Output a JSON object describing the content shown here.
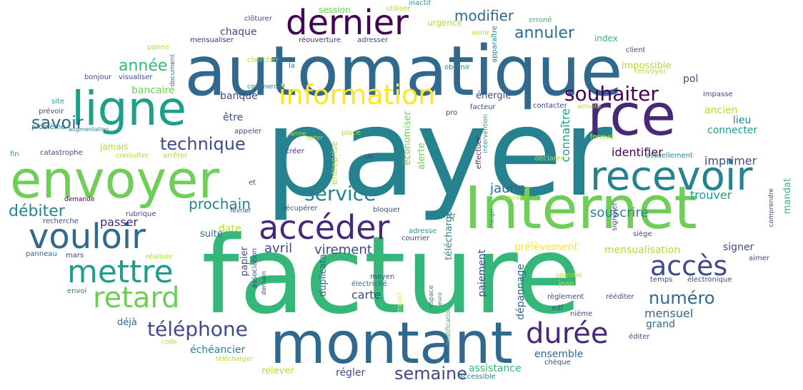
{
  "colors": [
    "#440154",
    "#482878",
    "#3e4a89",
    "#31688e",
    "#26828e",
    "#1f9e89",
    "#35b779",
    "#6ece58",
    "#b5de2b",
    "#fde725"
  ],
  "words": [
    {
      "text": "payer",
      "c": "#26828e",
      "s": 170
    },
    {
      "text": "facture",
      "c": "#35b779",
      "s": 150
    },
    {
      "text": "automatique",
      "c": "#31688e",
      "s": 96
    },
    {
      "text": "Internet",
      "c": "#6ece58",
      "s": 82
    },
    {
      "text": "montant",
      "c": "#31688e",
      "s": 80
    },
    {
      "text": "envoyer",
      "c": "#6ece58",
      "s": 72
    },
    {
      "text": "ligne",
      "c": "#1f9e89",
      "s": 66
    },
    {
      "text": "rce",
      "c": "#482878",
      "s": 80
    },
    {
      "text": "recevoir",
      "c": "#26828e",
      "s": 56
    },
    {
      "text": "vouloir",
      "c": "#31688e",
      "s": 48
    },
    {
      "text": "dernier",
      "c": "#440154",
      "s": 48
    },
    {
      "text": "accéder",
      "c": "#482878",
      "s": 46
    },
    {
      "text": "mettre",
      "c": "#1f9e89",
      "s": 44
    },
    {
      "text": "retard",
      "c": "#6ece58",
      "s": 40
    },
    {
      "text": "durée",
      "c": "#482878",
      "s": 40
    },
    {
      "text": "information",
      "c": "#fde725",
      "s": 38
    },
    {
      "text": "accès",
      "c": "#3e4a89",
      "s": 38
    },
    {
      "text": "service",
      "c": "#26828e",
      "s": 28
    },
    {
      "text": "souhaiter",
      "c": "#440154",
      "s": 28
    },
    {
      "text": "téléphone",
      "c": "#3e4a89",
      "s": 28
    },
    {
      "text": "semaine",
      "c": "#3e4a89",
      "s": 24
    },
    {
      "text": "savoir",
      "c": "#31688e",
      "s": 24
    },
    {
      "text": "technique",
      "c": "#3e4a89",
      "s": 24
    },
    {
      "text": "numéro",
      "c": "#31688e",
      "s": 24
    },
    {
      "text": "débiter",
      "c": "#26828e",
      "s": 22
    },
    {
      "text": "année",
      "c": "#35b779",
      "s": 22
    },
    {
      "text": "annuler",
      "c": "#31688e",
      "s": 22
    },
    {
      "text": "modifier",
      "c": "#31688e",
      "s": 20
    },
    {
      "text": "prochain",
      "c": "#26828e",
      "s": 20
    },
    {
      "text": "souscrire",
      "c": "#26828e",
      "s": 18
    },
    {
      "text": "jaune",
      "c": "#31688e",
      "s": 18
    },
    {
      "text": "avril",
      "c": "#3e4a89",
      "s": 18
    },
    {
      "text": "virement",
      "c": "#3e4a89",
      "s": 18
    },
    {
      "text": "identifier",
      "c": "#440154",
      "s": 16
    },
    {
      "text": "connaître",
      "c": "#1f9e89",
      "s": 16
    },
    {
      "text": "carte",
      "c": "#3e4a89",
      "s": 16
    },
    {
      "text": "passer",
      "c": "#482878",
      "s": 16
    },
    {
      "text": "trouver",
      "c": "#1f9e89",
      "s": 16
    },
    {
      "text": "imprimer",
      "c": "#3e4a89",
      "s": 16
    },
    {
      "text": "mensuel",
      "c": "#31688e",
      "s": 16
    },
    {
      "text": "régler",
      "c": "#3e4a89",
      "s": 14
    },
    {
      "text": "échéancier",
      "c": "#26828e",
      "s": 14
    },
    {
      "text": "ensemble",
      "c": "#31688e",
      "s": 14
    },
    {
      "text": "assistance",
      "c": "#35b779",
      "s": 14
    },
    {
      "text": "mensualisation",
      "c": "#b5de2b",
      "s": 14
    },
    {
      "text": "prélèvement",
      "c": "#fde725",
      "s": 14
    },
    {
      "text": "connecter",
      "c": "#1f9e89",
      "s": 14
    },
    {
      "text": "ancien",
      "c": "#b5de2b",
      "s": 14
    },
    {
      "text": "lieu",
      "c": "#26828e",
      "s": 14
    },
    {
      "text": "pol",
      "c": "#3e4a89",
      "s": 14
    },
    {
      "text": "signer",
      "c": "#3e4a89",
      "s": 14
    },
    {
      "text": "grand",
      "c": "#31688e",
      "s": 14
    },
    {
      "text": "banque",
      "c": "#3e4a89",
      "s": 14
    },
    {
      "text": "bancaire",
      "c": "#6ece58",
      "s": 14
    },
    {
      "text": "chaque",
      "c": "#3e4a89",
      "s": 14
    },
    {
      "text": "être",
      "c": "#3e4a89",
      "s": 14
    },
    {
      "text": "jamais",
      "c": "#b5de2b",
      "s": 12
    },
    {
      "text": "date",
      "c": "#b5de2b",
      "s": 14
    },
    {
      "text": "suite",
      "c": "#31688e",
      "s": 13
    },
    {
      "text": "déjà",
      "c": "#31688e",
      "s": 13
    },
    {
      "text": "relever",
      "c": "#b5de2b",
      "s": 13
    },
    {
      "text": "impossible",
      "c": "#b5de2b",
      "s": 13
    },
    {
      "text": "énergie",
      "c": "#3e4a89",
      "s": 13
    },
    {
      "text": "urgence",
      "c": "#b5de2b",
      "s": 12
    },
    {
      "text": "session",
      "c": "#6ece58",
      "s": 12
    },
    {
      "text": "index",
      "c": "#35b779",
      "s": 12
    },
    {
      "text": "mandat",
      "c": "#35b779",
      "s": 13
    },
    {
      "text": "paiement",
      "c": "#3e4a89",
      "s": 14
    },
    {
      "text": "dépannage",
      "c": "#31688e",
      "s": 14
    },
    {
      "text": "télécharger",
      "c": "#26828e",
      "s": 13
    },
    {
      "text": "économiser",
      "c": "#6ece58",
      "s": 13
    },
    {
      "text": "entreprise",
      "c": "#b5de2b",
      "s": 12
    },
    {
      "text": "alerte",
      "c": "#6ece58",
      "s": 13
    },
    {
      "text": "papier",
      "c": "#3e4a89",
      "s": 13
    },
    {
      "text": "duplicata",
      "c": "#31688e",
      "s": 13
    },
    {
      "text": "apparaître",
      "c": "#26828e",
      "s": 10
    },
    {
      "text": "effectuer",
      "c": "#482878",
      "s": 10
    },
    {
      "text": "intervention",
      "c": "#1f9e89",
      "s": 9
    },
    {
      "text": "association",
      "c": "#3e4a89",
      "s": 10
    },
    {
      "text": "demain",
      "c": "#3e4a89",
      "s": 9
    },
    {
      "text": "modification",
      "c": "#35b779",
      "s": 9
    },
    {
      "text": "travail",
      "c": "#fde725",
      "s": 9
    },
    {
      "text": "espace",
      "c": "#26828e",
      "s": 9
    },
    {
      "text": "euro",
      "c": "#26828e",
      "s": 8
    },
    {
      "text": "changer",
      "c": "#31688e",
      "s": 7
    },
    {
      "text": "signaler",
      "c": "#3e4a89",
      "s": 10
    },
    {
      "text": "comprendre",
      "c": "#3e4a89",
      "s": 9
    },
    {
      "text": "clôturer",
      "c": "#3e4a89",
      "s": 10
    },
    {
      "text": "utiliser",
      "c": "#b5de2b",
      "s": 10
    },
    {
      "text": "inactif",
      "c": "#1f9e89",
      "s": 10
    },
    {
      "text": "erroné",
      "c": "#35b779",
      "s": 10
    },
    {
      "text": "mensualiser",
      "c": "#482878",
      "s": 10
    },
    {
      "text": "réouverture",
      "c": "#482878",
      "s": 10
    },
    {
      "text": "adresser",
      "c": "#3e4a89",
      "s": 10
    },
    {
      "text": "venir",
      "c": "#b5de2b",
      "s": 10
    },
    {
      "text": "client",
      "c": "#3e4a89",
      "s": 10
    },
    {
      "text": "panne",
      "c": "#b5de2b",
      "s": 10
    },
    {
      "text": "document",
      "c": "#31688e",
      "s": 9
    },
    {
      "text": "chercher",
      "c": "#b5de2b",
      "s": 10
    },
    {
      "text": "renvoyer",
      "c": "#b5de2b",
      "s": 10
    },
    {
      "text": "bonjour",
      "c": "#3e4a89",
      "s": 10
    },
    {
      "text": "visualiser",
      "c": "#3e4a89",
      "s": 10
    },
    {
      "text": "la",
      "c": "#26828e",
      "s": 10
    },
    {
      "text": "obtenir",
      "c": "#26828e",
      "s": 10
    },
    {
      "text": "impasse",
      "c": "#3e4a89",
      "s": 10
    },
    {
      "text": "commercial",
      "c": "#26828e",
      "s": 9
    },
    {
      "text": "site",
      "c": "#1f9e89",
      "s": 10
    },
    {
      "text": "prévoir",
      "c": "#3e4a89",
      "s": 10
    },
    {
      "text": "pro",
      "c": "#3e4a89",
      "s": 10
    },
    {
      "text": "facteur",
      "c": "#3e4a89",
      "s": 10
    },
    {
      "text": "contacter",
      "c": "#3e4a89",
      "s": 10
    },
    {
      "text": "activité",
      "c": "#b5de2b",
      "s": 9
    },
    {
      "text": "problème",
      "c": "#26828e",
      "s": 10
    },
    {
      "text": "augmentation",
      "c": "#26828e",
      "s": 8
    },
    {
      "text": "appeler",
      "c": "#3e4a89",
      "s": 10
    },
    {
      "text": "anne",
      "c": "#b5de2b",
      "s": 9
    },
    {
      "text": "noter",
      "c": "#b5de2b",
      "s": 9
    },
    {
      "text": "place",
      "c": "#b5de2b",
      "s": 10
    },
    {
      "text": "format",
      "c": "#b5de2b",
      "s": 10
    },
    {
      "text": "actuellement",
      "c": "#26828e",
      "s": 10
    },
    {
      "text": "fin",
      "c": "#1f9e89",
      "s": 10
    },
    {
      "text": "catastrophe",
      "c": "#3e4a89",
      "s": 10
    },
    {
      "text": "consulter",
      "c": "#b5de2b",
      "s": 10
    },
    {
      "text": "arrêter",
      "c": "#b5de2b",
      "s": 10
    },
    {
      "text": "créer",
      "c": "#482878",
      "s": 10
    },
    {
      "text": "cas",
      "c": "#3e4a89",
      "s": 8
    },
    {
      "text": "déclarer",
      "c": "#b5de2b",
      "s": 10
    },
    {
      "text": "et",
      "c": "#3e4a89",
      "s": 10
    },
    {
      "text": "veuillez",
      "c": "#b5de2b",
      "s": 9
    },
    {
      "text": "demande",
      "c": "#440154",
      "s": 9
    },
    {
      "text": "rubrique",
      "c": "#3e4a89",
      "s": 10
    },
    {
      "text": "février",
      "c": "#3e4a89",
      "s": 9
    },
    {
      "text": "récupérer",
      "c": "#3e4a89",
      "s": 10
    },
    {
      "text": "bloquer",
      "c": "#3e4a89",
      "s": 10
    },
    {
      "text": "janvier",
      "c": "#26828e",
      "s": 10
    },
    {
      "text": "recherche",
      "c": "#3e4a89",
      "s": 10
    },
    {
      "text": "adresse",
      "c": "#1f9e89",
      "s": 10
    },
    {
      "text": "courrier",
      "c": "#3e4a89",
      "s": 10
    },
    {
      "text": "siège",
      "c": "#3e4a89",
      "s": 10
    },
    {
      "text": "panneau",
      "c": "#31688e",
      "s": 10
    },
    {
      "text": "mars",
      "c": "#3e4a89",
      "s": 10
    },
    {
      "text": "réaliser",
      "c": "#b5de2b",
      "s": 10
    },
    {
      "text": "aimer",
      "c": "#3e4a89",
      "s": 10
    },
    {
      "text": "somme",
      "c": "#b5de2b",
      "s": 10
    },
    {
      "text": "temps",
      "c": "#3e4a89",
      "s": 10
    },
    {
      "text": "électronique",
      "c": "#3e4a89",
      "s": 10
    },
    {
      "text": "moyen",
      "c": "#3e4a89",
      "s": 10
    },
    {
      "text": "électricité",
      "c": "#31688e",
      "s": 10
    },
    {
      "text": "jean",
      "c": "#b5de2b",
      "s": 10
    },
    {
      "text": "envoi",
      "c": "#26828e",
      "s": 10
    },
    {
      "text": "règlement",
      "c": "#3e4a89",
      "s": 10
    },
    {
      "text": "rééditer",
      "c": "#3e4a89",
      "s": 10
    },
    {
      "text": "edf",
      "c": "#3e4a89",
      "s": 10
    },
    {
      "text": "nième",
      "c": "#3e4a89",
      "s": 10
    },
    {
      "text": "code",
      "c": "#b5de2b",
      "s": 9
    },
    {
      "text": "éditer",
      "c": "#3e4a89",
      "s": 10
    },
    {
      "text": "chèque",
      "c": "#3e4a89",
      "s": 10
    },
    {
      "text": "télécharger",
      "c": "#b5de2b",
      "s": 9
    },
    {
      "text": "accessible",
      "c": "#26828e",
      "s": 10
    }
  ]
}
